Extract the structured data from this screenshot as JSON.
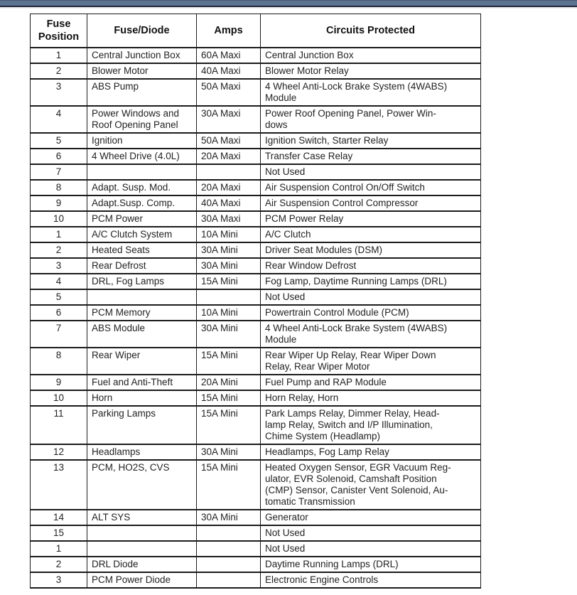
{
  "page": {
    "top_bar_color": "#5c7492",
    "background_color": "#ffffff",
    "border_color": "#1b1b1b",
    "text_color": "#232323"
  },
  "table": {
    "headers": [
      "Fuse Position",
      "Fuse/Diode",
      "Amps",
      "Circuits Protected"
    ],
    "column_keys": [
      "position",
      "fuse",
      "amps",
      "circuits"
    ],
    "rows": [
      {
        "position": "1",
        "fuse": "Central Junction Box",
        "amps": "60A Maxi",
        "circuits": "Central Junction Box"
      },
      {
        "position": "2",
        "fuse": "Blower Motor",
        "amps": "40A Maxi",
        "circuits": "Blower Motor Relay"
      },
      {
        "position": "3",
        "fuse": "ABS Pump",
        "amps": "50A Maxi",
        "circuits": "4 Wheel Anti-Lock Brake System  (4WABS)\nModule"
      },
      {
        "position": "4",
        "fuse": "Power Windows and\nRoof Opening Panel",
        "amps": "30A Maxi",
        "circuits": "Power Roof Opening Panel, Power Win-\ndows"
      },
      {
        "position": "5",
        "fuse": "Ignition",
        "amps": "50A Maxi",
        "circuits": "Ignition Switch, Starter Relay"
      },
      {
        "position": "6",
        "fuse": "4 Wheel Drive (4.0L)",
        "amps": "20A Maxi",
        "circuits": "Transfer Case Relay"
      },
      {
        "position": "7",
        "fuse": "",
        "amps": "",
        "circuits": "Not Used"
      },
      {
        "position": "8",
        "fuse": "Adapt. Susp. Mod.",
        "amps": "20A Maxi",
        "circuits": "Air Suspension Control On/Off Switch"
      },
      {
        "position": "9",
        "fuse": "Adapt.Susp. Comp.",
        "amps": "40A Maxi",
        "circuits": "Air Suspension Control Compressor"
      },
      {
        "position": "10",
        "fuse": "PCM Power",
        "amps": "30A Maxi",
        "circuits": "PCM Power Relay"
      },
      {
        "position": "1",
        "fuse": "A/C Clutch System",
        "amps": "10A Mini",
        "circuits": "A/C Clutch"
      },
      {
        "position": "2",
        "fuse": "Heated Seats",
        "amps": "30A Mini",
        "circuits": "Driver Seat Modules (DSM)"
      },
      {
        "position": "3",
        "fuse": "Rear Defrost",
        "amps": "30A Mini",
        "circuits": "Rear Window Defrost"
      },
      {
        "position": "4",
        "fuse": "DRL, Fog Lamps",
        "amps": "15A Mini",
        "circuits": "Fog Lamp, Daytime Running Lamps (DRL)"
      },
      {
        "position": "5",
        "fuse": "",
        "amps": "",
        "circuits": "Not Used"
      },
      {
        "position": "6",
        "fuse": "PCM Memory",
        "amps": "10A Mini",
        "circuits": "Powertrain Control Module (PCM)"
      },
      {
        "position": "7",
        "fuse": "ABS Module",
        "amps": "30A Mini",
        "circuits": "4 Wheel Anti-Lock Brake System (4WABS)\nModule"
      },
      {
        "position": "8",
        "fuse": "Rear Wiper",
        "amps": "15A Mini",
        "circuits": "Rear Wiper Up Relay, Rear Wiper Down\nRelay, Rear Wiper Motor"
      },
      {
        "position": "9",
        "fuse": "Fuel and Anti-Theft",
        "amps": "20A Mini",
        "circuits": "Fuel Pump and RAP Module"
      },
      {
        "position": "10",
        "fuse": "Horn",
        "amps": "15A Mini",
        "circuits": "Horn Relay, Horn"
      },
      {
        "position": "11",
        "fuse": "Parking Lamps",
        "amps": "15A Mini",
        "circuits": "Park Lamps Relay, Dimmer Relay, Head-\nlamp Relay, Switch and I/P Illumination,\nChime System (Headlamp)"
      },
      {
        "position": "12",
        "fuse": "Headlamps",
        "amps": "30A Mini",
        "circuits": "Headlamps, Fog Lamp Relay"
      },
      {
        "position": "13",
        "fuse": "PCM, HO2S, CVS",
        "amps": "15A Mini",
        "circuits": "Heated Oxygen Sensor, EGR Vacuum Reg-\nulator, EVR Solenoid, Camshaft Position\n(CMP) Sensor, Canister Vent Solenoid, Au-\ntomatic Transmission"
      },
      {
        "position": "14",
        "fuse": "ALT SYS",
        "amps": "30A Mini",
        "circuits": "Generator"
      },
      {
        "position": "15",
        "fuse": "",
        "amps": "",
        "circuits": "Not Used"
      },
      {
        "position": "1",
        "fuse": "",
        "amps": "",
        "circuits": "Not Used"
      },
      {
        "position": "2",
        "fuse": "DRL Diode",
        "amps": "",
        "circuits": "Daytime Running Lamps (DRL)"
      },
      {
        "position": "3",
        "fuse": "PCM Power Diode",
        "amps": "",
        "circuits": "Electronic Engine Controls"
      }
    ]
  }
}
